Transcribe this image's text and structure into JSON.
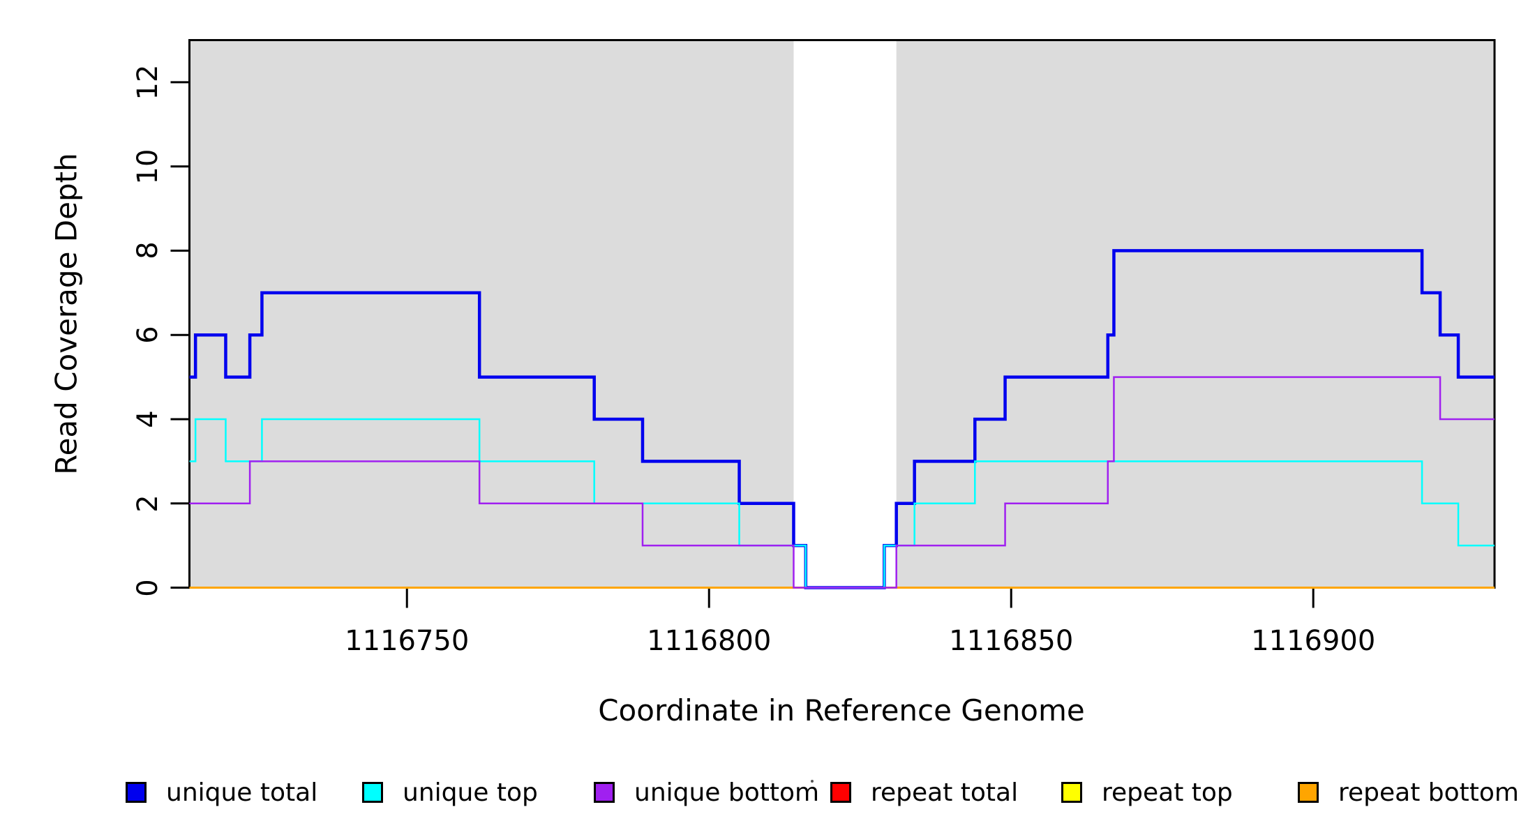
{
  "figure": {
    "background": "#FFFFFF",
    "plot_area_fill": "#FFFFFF",
    "shaded_region_color": "#DCDCDC",
    "box_color": "#000000"
  },
  "axes": {
    "x_title": "Coordinate in Reference Genome",
    "y_title": "Read Coverage Depth"
  },
  "legend": {
    "items": [
      {
        "label": "unique total",
        "color": "#0000EE"
      },
      {
        "label": "unique top",
        "color": "#00FFFF"
      },
      {
        "label": "unique bottom",
        "color": "#A020F0"
      },
      {
        "label": "repeat total",
        "color": "#FF0000"
      },
      {
        "label": "repeat top",
        "color": "#FFFF00"
      },
      {
        "label": "repeat bottom",
        "color": "#FFA500"
      }
    ]
  },
  "chart_data": {
    "type": "line",
    "subtype": "step-post",
    "title": "",
    "xlabel": "Coordinate in Reference Genome",
    "ylabel": "Read Coverage Depth",
    "xlim": [
      1116714,
      1116930
    ],
    "ylim": [
      0,
      13
    ],
    "x_ticks": [
      1116750,
      1116800,
      1116850,
      1116900
    ],
    "y_ticks": [
      0,
      2,
      4,
      6,
      8,
      10,
      12
    ],
    "grid": false,
    "legend_position": "bottom",
    "shaded_regions": [
      {
        "x0": 1116714,
        "x1": 1116814
      },
      {
        "x0": 1116831,
        "x1": 1116930
      }
    ],
    "series": [
      {
        "name": "repeat total",
        "color": "#FF0000",
        "width": 2.5,
        "points": [
          [
            1116714,
            0
          ]
        ]
      },
      {
        "name": "repeat top",
        "color": "#FFFF00",
        "width": 2.5,
        "points": [
          [
            1116714,
            0
          ]
        ]
      },
      {
        "name": "repeat bottom",
        "color": "#FFA500",
        "width": 3,
        "points": [
          [
            1116714,
            0
          ]
        ]
      },
      {
        "name": "unique total",
        "color": "#0000EE",
        "width": 4.5,
        "points": [
          [
            1116714,
            5
          ],
          [
            1116715,
            6
          ],
          [
            1116720,
            5
          ],
          [
            1116724,
            6
          ],
          [
            1116726,
            7
          ],
          [
            1116762,
            5
          ],
          [
            1116781,
            4
          ],
          [
            1116789,
            3
          ],
          [
            1116805,
            2
          ],
          [
            1116814,
            1
          ],
          [
            1116816,
            0
          ],
          [
            1116829,
            1
          ],
          [
            1116831,
            2
          ],
          [
            1116834,
            3
          ],
          [
            1116844,
            4
          ],
          [
            1116849,
            5
          ],
          [
            1116866,
            6
          ],
          [
            1116867,
            8
          ],
          [
            1116918,
            7
          ],
          [
            1116921,
            6
          ],
          [
            1116924,
            5
          ]
        ]
      },
      {
        "name": "unique top",
        "color": "#00FFFF",
        "width": 2.5,
        "points": [
          [
            1116714,
            3
          ],
          [
            1116715,
            4
          ],
          [
            1116720,
            3
          ],
          [
            1116726,
            4
          ],
          [
            1116762,
            3
          ],
          [
            1116781,
            2
          ],
          [
            1116805,
            1
          ],
          [
            1116816,
            0
          ],
          [
            1116829,
            1
          ],
          [
            1116834,
            2
          ],
          [
            1116844,
            3
          ],
          [
            1116918,
            2
          ],
          [
            1116924,
            1
          ]
        ]
      },
      {
        "name": "unique bottom",
        "color": "#A020F0",
        "width": 2.5,
        "points": [
          [
            1116714,
            2
          ],
          [
            1116724,
            3
          ],
          [
            1116762,
            2
          ],
          [
            1116789,
            1
          ],
          [
            1116814,
            0
          ],
          [
            1116831,
            1
          ],
          [
            1116849,
            2
          ],
          [
            1116866,
            3
          ],
          [
            1116867,
            5
          ],
          [
            1116921,
            4
          ]
        ]
      }
    ]
  }
}
